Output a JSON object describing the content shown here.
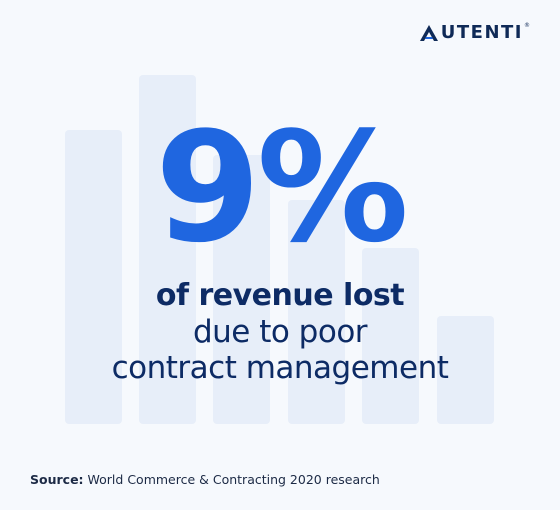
{
  "brand": {
    "logo_text": "UTENTI",
    "logo_initial": "A",
    "registered": "®",
    "color": "#0f2a57"
  },
  "headline": {
    "stat": "9%",
    "line1": "of revenue lost",
    "line2": "due to poor",
    "line3": "contract management",
    "stat_color": "#1f66e0",
    "text_color": "#0d2b65"
  },
  "source": {
    "label": "Source:",
    "text": " World Commerce & Contracting 2020 research"
  },
  "colors": {
    "background": "#f6f9fd",
    "decorative_bars": "#e7eef9"
  }
}
